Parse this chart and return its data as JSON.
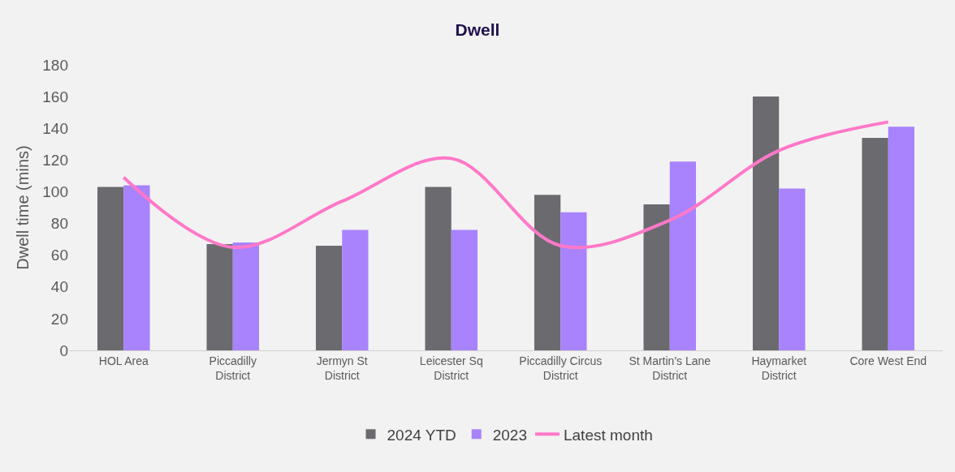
{
  "chart_data": {
    "type": "bar",
    "title": "Dwell",
    "ylabel": "Dwell time (mins)",
    "categories": [
      "HOL Area",
      "Piccadilly District",
      "Jermyn St District",
      "Leicester Sq District",
      "Piccadilly Circus District",
      "St Martin's Lane District",
      "Haymarket District",
      "Core West End"
    ],
    "series": [
      {
        "name": "2024 YTD",
        "color": "#6a6a6f",
        "values": [
          103,
          67,
          66,
          103,
          98,
          92,
          160,
          134
        ]
      },
      {
        "name": "2023",
        "color": "#a982fd",
        "values": [
          104,
          68,
          76,
          76,
          87,
          119,
          102,
          141
        ]
      },
      {
        "name": "Latest month",
        "type": "line",
        "color": "#ff78c8",
        "values": [
          109,
          65,
          94,
          121,
          66,
          82,
          126,
          144
        ]
      }
    ],
    "ylim": [
      0,
      180
    ],
    "yticks": [
      0,
      20,
      40,
      60,
      80,
      100,
      120,
      140,
      160,
      180
    ],
    "grid": false,
    "legend": "bottom",
    "marker": "none",
    "line_style": "solid"
  }
}
